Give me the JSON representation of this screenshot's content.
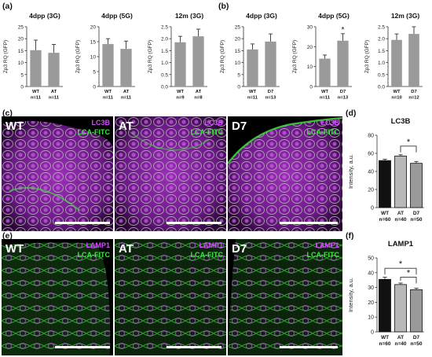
{
  "panel_labels": {
    "a": "(a)",
    "b": "(b)",
    "c": "(c)",
    "d": "(d)",
    "e": "(e)",
    "f": "(f)"
  },
  "colors": {
    "bar_grey": "#9a9a9a",
    "bar_black": "#111111",
    "bar_lightgrey": "#b8b8b8",
    "magenta": "#d24cff",
    "green": "#3de83d"
  },
  "chart_data": [
    {
      "type": "bar",
      "title": "4dpp (3G)",
      "ylabel": "Zp3 RQ (GFP)",
      "ylim": [
        0,
        25
      ],
      "ticks": [
        0,
        5,
        10,
        15,
        20,
        25
      ],
      "categories": [
        "WT",
        "AT"
      ],
      "ns": [
        "n=11",
        "n=11"
      ],
      "values": [
        15.2,
        14.1
      ],
      "errors": [
        4.2,
        3.5
      ],
      "star": false
    },
    {
      "type": "bar",
      "title": "4dpp (5G)",
      "ylabel": "Zp3 RQ (GFP)",
      "ylim": [
        0,
        20
      ],
      "ticks": [
        0,
        5,
        10,
        15,
        20
      ],
      "categories": [
        "WT",
        "AT"
      ],
      "ns": [
        "n=11",
        "n=11"
      ],
      "values": [
        14.2,
        12.6
      ],
      "errors": [
        1.8,
        2.6
      ],
      "star": false
    },
    {
      "type": "bar",
      "title": "12m (3G)",
      "ylabel": "Zp3 RQ (GFP)",
      "ylim": [
        0,
        2.5
      ],
      "ticks": [
        0.0,
        0.5,
        1.0,
        1.5,
        2.0,
        2.5
      ],
      "categories": [
        "WT",
        "AT"
      ],
      "ns": [
        "n=9",
        "n=8"
      ],
      "values": [
        1.85,
        2.1
      ],
      "errors": [
        0.25,
        0.3
      ],
      "star": false
    },
    {
      "type": "bar",
      "title": "4dpp (3G)",
      "ylabel": "Zp3 RQ (GFP)",
      "ylim": [
        0,
        25
      ],
      "ticks": [
        0,
        5,
        10,
        15,
        20,
        25
      ],
      "categories": [
        "WT",
        "D7"
      ],
      "ns": [
        "n=11",
        "n=13"
      ],
      "values": [
        15.5,
        18.8
      ],
      "errors": [
        2.3,
        3.2
      ],
      "star": false
    },
    {
      "type": "bar",
      "title": "4dpp (5G)",
      "ylabel": "Zp3 RQ (GFP)",
      "ylim": [
        0,
        30
      ],
      "ticks": [
        0,
        10,
        20,
        30
      ],
      "categories": [
        "WT",
        "D7"
      ],
      "ns": [
        "n=11",
        "n=13"
      ],
      "values": [
        14.0,
        23.0
      ],
      "errors": [
        1.8,
        3.5
      ],
      "star": true,
      "star_text": "*"
    },
    {
      "type": "bar",
      "title": "12m (3G)",
      "ylabel": "Zp3 RQ (GFP)",
      "ylim": [
        0,
        2.5
      ],
      "ticks": [
        0.0,
        0.5,
        1.0,
        1.5,
        2.0,
        2.5
      ],
      "categories": [
        "WT",
        "D7"
      ],
      "ns": [
        "n=10",
        "n=12"
      ],
      "values": [
        1.95,
        2.2
      ],
      "errors": [
        0.25,
        0.3
      ],
      "star": false
    },
    {
      "type": "bar",
      "title": "LC3B",
      "ylabel": "Intensity, a.u.",
      "ylim": [
        0,
        80
      ],
      "ticks": [
        0,
        20,
        40,
        60,
        80
      ],
      "categories": [
        "WT",
        "AT",
        "D7"
      ],
      "ns": [
        "n=60",
        "n=40",
        "n=50"
      ],
      "values": [
        52,
        57,
        49
      ],
      "errors": [
        1.5,
        1.5,
        2
      ],
      "brackets": [
        {
          "from": 1,
          "to": 2,
          "level": 68,
          "text": "*"
        }
      ]
    },
    {
      "type": "bar",
      "title": "LAMP1",
      "ylabel": "Intensity, a.u.",
      "ylim": [
        0,
        50
      ],
      "ticks": [
        0,
        10,
        20,
        30,
        40,
        50
      ],
      "categories": [
        "WT",
        "AT",
        "D7"
      ],
      "ns": [
        "n=60",
        "n=40",
        "n=50"
      ],
      "values": [
        35.5,
        32,
        28.5
      ],
      "errors": [
        1.5,
        1,
        1
      ],
      "brackets": [
        {
          "from": 0,
          "to": 2,
          "level": 43,
          "text": "*"
        },
        {
          "from": 1,
          "to": 2,
          "level": 37,
          "text": "*"
        }
      ]
    }
  ],
  "micrographs": {
    "c": [
      {
        "label": "WT",
        "ch1": "LC3B",
        "ch2": "LCA-FITC"
      },
      {
        "label": "AT",
        "ch1": "LC3B",
        "ch2": "LCA-FITC"
      },
      {
        "label": "D7",
        "ch1": "LC3B",
        "ch2": "LCA-FITC"
      }
    ],
    "e": [
      {
        "label": "WT",
        "ch1": "LAMP1",
        "ch2": "LCA-FITC"
      },
      {
        "label": "AT",
        "ch1": "LAMP1",
        "ch2": "LCA-FITC"
      },
      {
        "label": "D7",
        "ch1": "LAMP1",
        "ch2": "LCA-FITC"
      }
    ]
  }
}
